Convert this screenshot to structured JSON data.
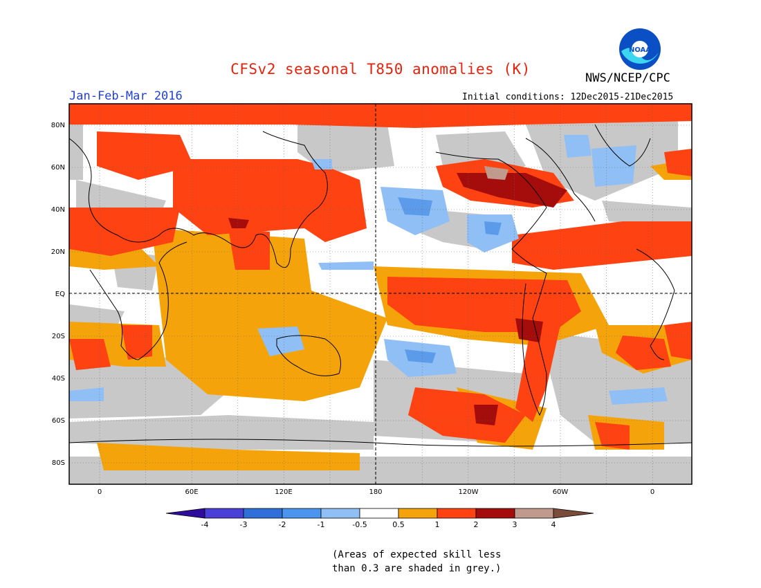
{
  "header": {
    "title": "CFSv2 seasonal T850 anomalies (K)",
    "agency": "NWS/NCEP/CPC",
    "period": "Jan-Feb-Mar 2016",
    "initial_conditions": "Initial conditions: 12Dec2015-21Dec2015"
  },
  "logo": {
    "text": "NOAA",
    "icon": "noaa-logo"
  },
  "map": {
    "lat_labels": [
      "80N",
      "60N",
      "40N",
      "20N",
      "EQ",
      "20S",
      "40S",
      "60S",
      "80S"
    ],
    "lon_labels": [
      "0",
      "60E",
      "120E",
      "180",
      "120W",
      "60W",
      "0"
    ],
    "colors": {
      "frame": "#000000",
      "grey": "#c8c8c8",
      "neg": "#8fbff5",
      "neg_strong": "#5b9bea",
      "pos_light": "#f5a30a",
      "pos_mid": "#ff4212",
      "pos_strong": "#a50d0d",
      "pos_extreme": "#c09a8c"
    }
  },
  "colorbar": {
    "labels": [
      "-4",
      "-3",
      "-2",
      "-1",
      "-0.5",
      "0.5",
      "1",
      "2",
      "3",
      "4"
    ],
    "colors": [
      "#2f0c9c",
      "#4a3fd6",
      "#2e6fd9",
      "#4b95ee",
      "#8fbff5",
      "#ffffff",
      "#f5a30a",
      "#ff4212",
      "#a50d0d",
      "#c09a8c",
      "#7a4c3a"
    ]
  },
  "footnote": {
    "line1": "(Areas of expected skill less",
    "line2": "than 0.3 are shaded in grey.)"
  }
}
